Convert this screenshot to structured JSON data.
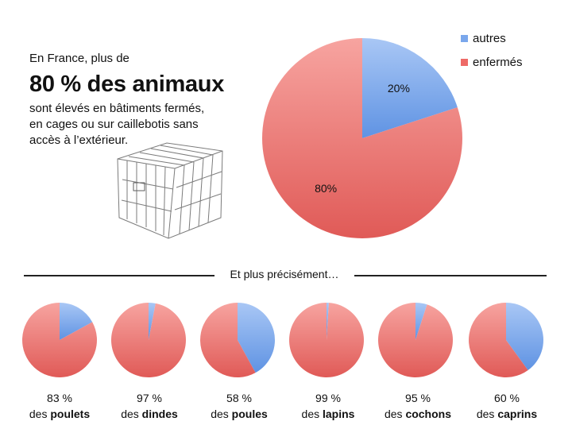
{
  "intro": {
    "lead": "En France, plus de",
    "headline": "80 % des animaux",
    "body_lines": [
      "sont élevés en bâtiments fermés,",
      "en cages ou sur caillebotis sans",
      "accès à l’extérieur."
    ]
  },
  "cage_image": {
    "icon": "wire-cage-icon"
  },
  "legend": {
    "items": [
      {
        "label": "autres",
        "color": "#7aa7ec"
      },
      {
        "label": "enfermés",
        "color": "#ee6a67"
      }
    ]
  },
  "separator": {
    "label": "Et plus précisément…"
  },
  "captions": [
    {
      "percent": "83 %",
      "prefix": "des ",
      "animal": "poulets"
    },
    {
      "percent": "97 %",
      "prefix": "des ",
      "animal": "dindes"
    },
    {
      "percent": "58 %",
      "prefix": "des ",
      "animal": "poules"
    },
    {
      "percent": "99 %",
      "prefix": "des ",
      "animal": "lapins"
    },
    {
      "percent": "95 %",
      "prefix": "des ",
      "animal": "cochons"
    },
    {
      "percent": "60 %",
      "prefix": "des ",
      "animal": "caprins"
    }
  ],
  "chart_data": [
    {
      "type": "pie",
      "title": "",
      "slices": [
        {
          "name": "autres",
          "value": 20,
          "label": "20%",
          "color": "#7aa7ec"
        },
        {
          "name": "enfermés",
          "value": 80,
          "label": "80%",
          "color": "#ee6a67"
        }
      ]
    },
    {
      "type": "pie",
      "name": "poulets",
      "slices": [
        {
          "name": "autres",
          "value": 17
        },
        {
          "name": "enfermés",
          "value": 83
        }
      ]
    },
    {
      "type": "pie",
      "name": "dindes",
      "slices": [
        {
          "name": "autres",
          "value": 3
        },
        {
          "name": "enfermés",
          "value": 97
        }
      ]
    },
    {
      "type": "pie",
      "name": "poules",
      "slices": [
        {
          "name": "autres",
          "value": 42
        },
        {
          "name": "enfermés",
          "value": 58
        }
      ]
    },
    {
      "type": "pie",
      "name": "lapins",
      "slices": [
        {
          "name": "autres",
          "value": 1
        },
        {
          "name": "enfermés",
          "value": 99
        }
      ]
    },
    {
      "type": "pie",
      "name": "cochons",
      "slices": [
        {
          "name": "autres",
          "value": 5
        },
        {
          "name": "enfermés",
          "value": 95
        }
      ]
    },
    {
      "type": "pie",
      "name": "caprins",
      "slices": [
        {
          "name": "autres",
          "value": 40
        },
        {
          "name": "enfermés",
          "value": 60
        }
      ]
    }
  ]
}
